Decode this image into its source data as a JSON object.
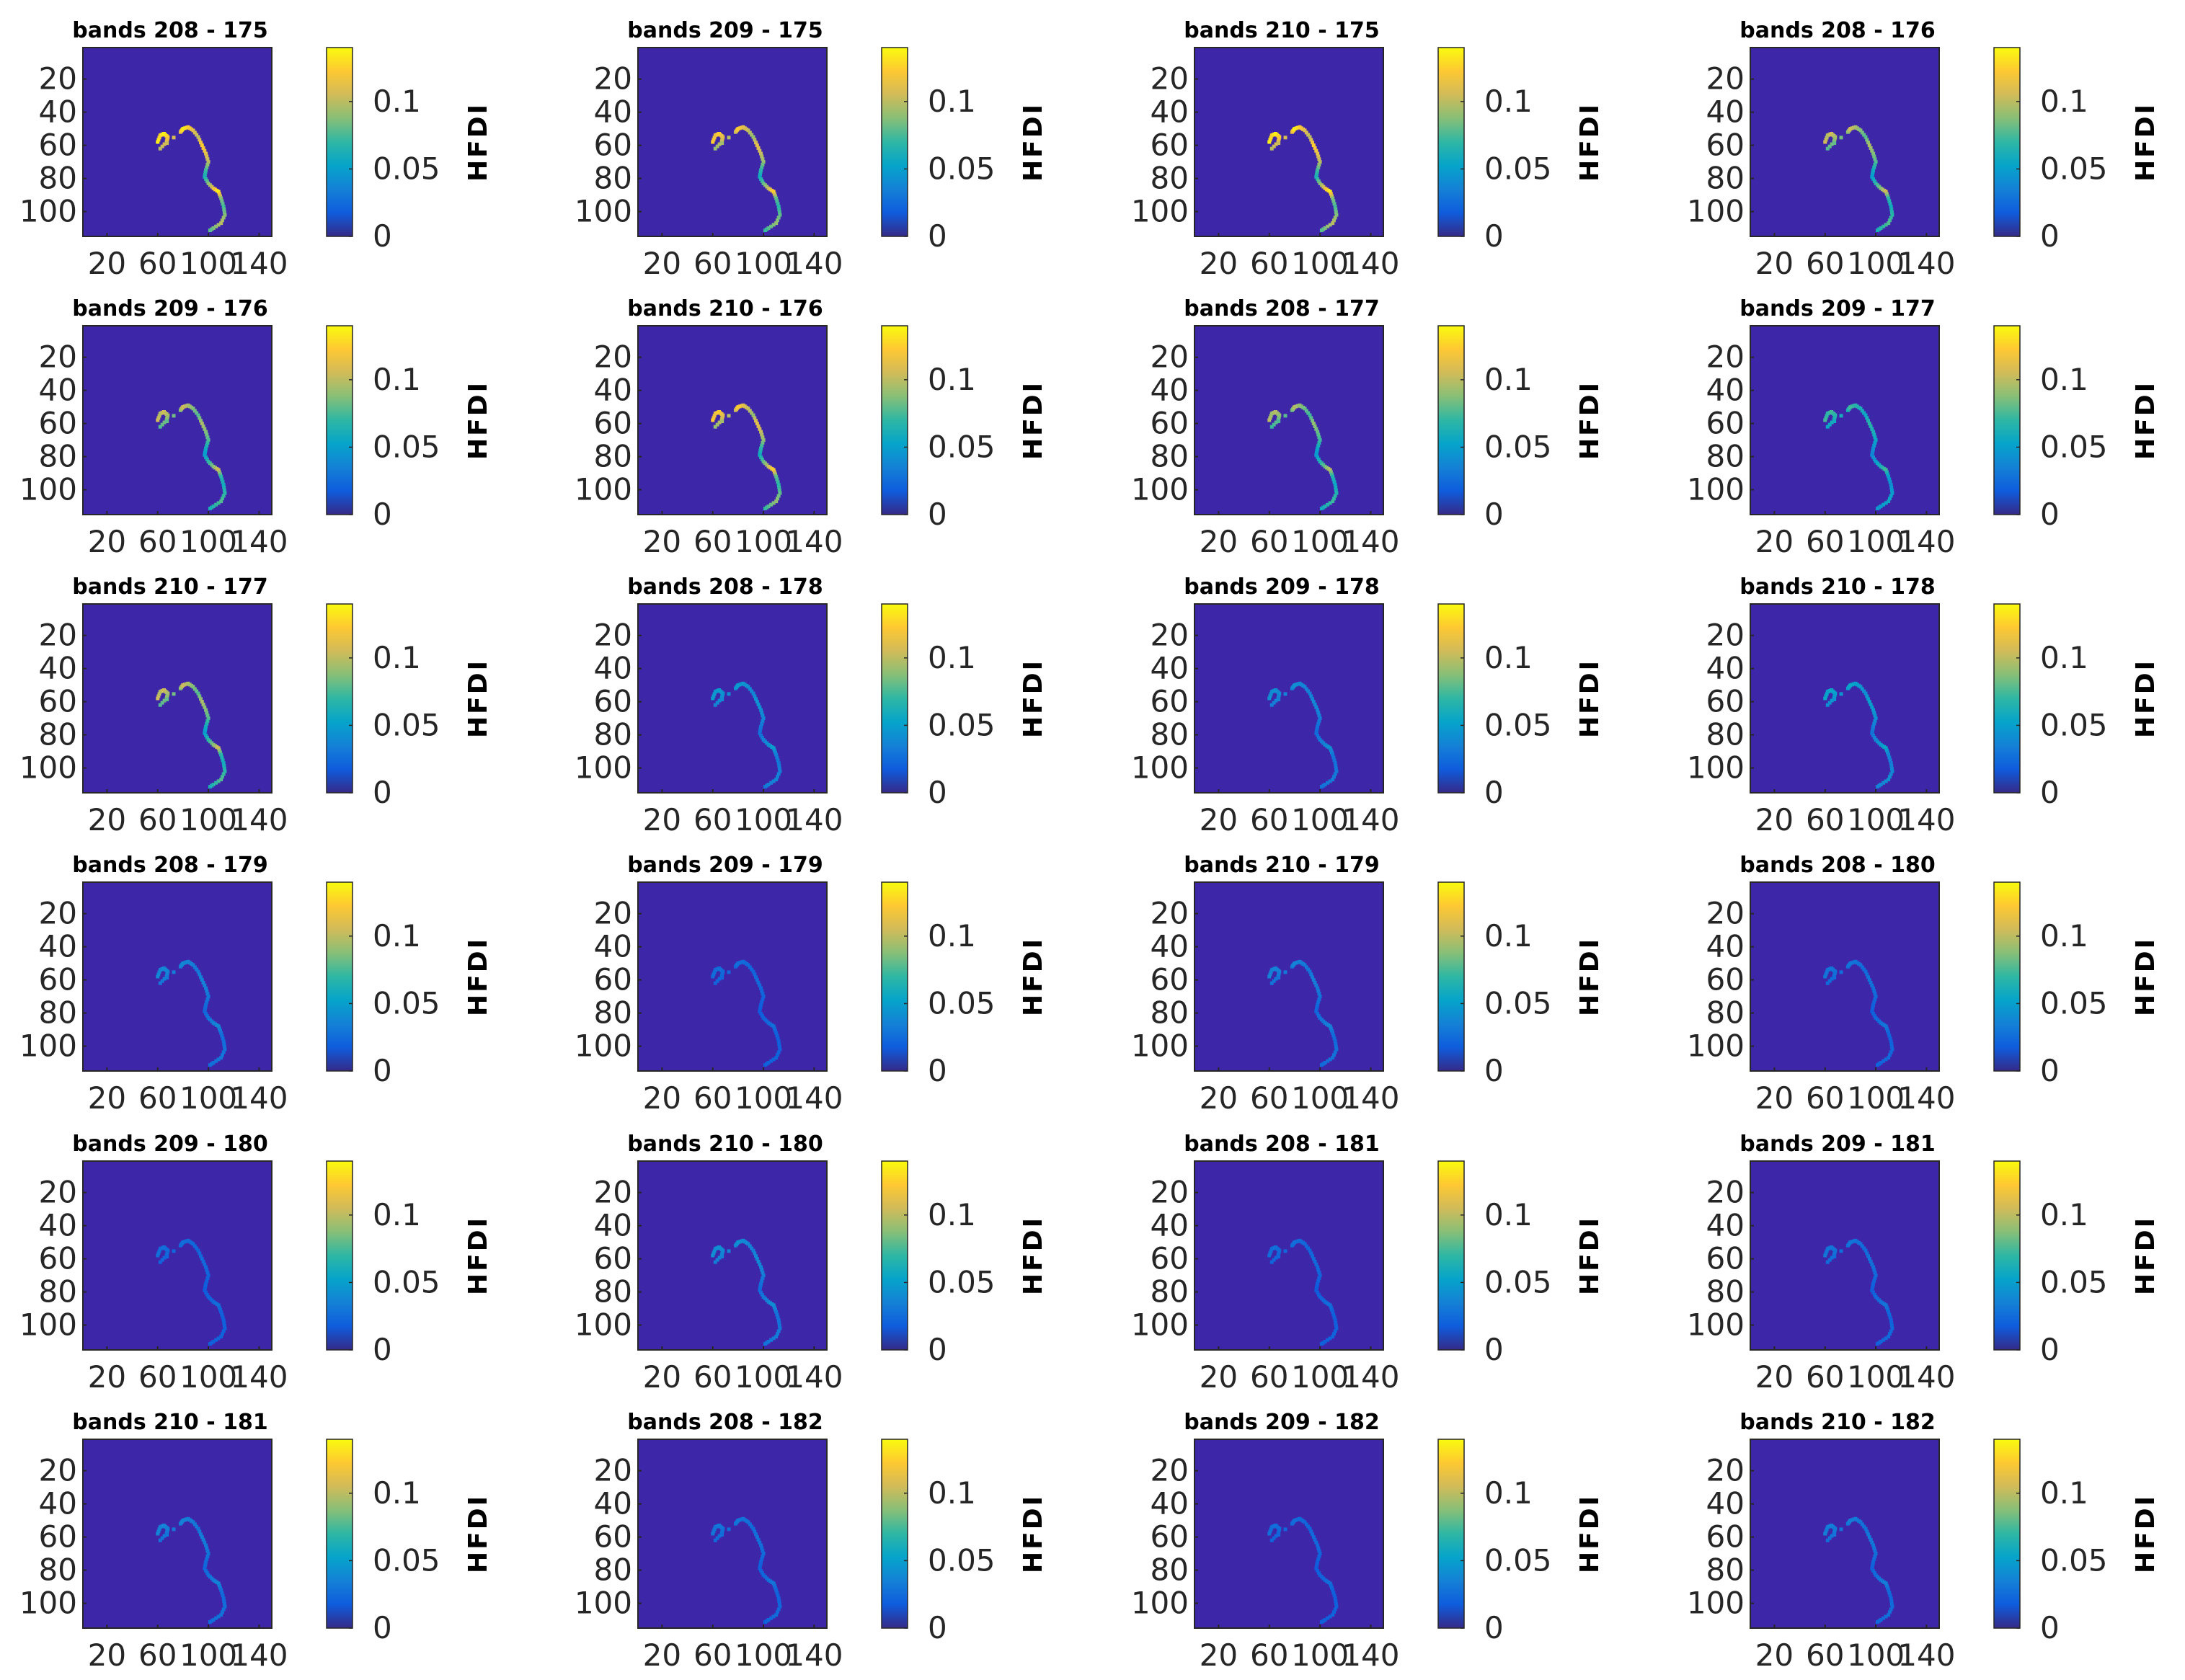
{
  "chart_data": {
    "type": "heatmap",
    "figure_title": "",
    "layout": {
      "rows": 6,
      "cols": 4
    },
    "xlim": [
      1,
      150
    ],
    "ylim": [
      1,
      115
    ],
    "xticks": [
      20,
      60,
      100,
      140
    ],
    "xtick_labels": [
      "20",
      "60",
      "100",
      "140"
    ],
    "yticks": [
      20,
      40,
      60,
      80,
      100
    ],
    "ytick_labels": [
      "20",
      "40",
      "60",
      "80",
      "100"
    ],
    "colorbar": {
      "label": "HFDI",
      "range": [
        0,
        0.14
      ],
      "ticks": [
        0,
        0.05,
        0.1
      ],
      "tick_labels": [
        "0",
        "0.05",
        "0.1"
      ],
      "colormap": "parula",
      "stops": [
        "#352a87",
        "#0f5cdd",
        "#1481d6",
        "#06a4ca",
        "#2eb7a4",
        "#87bf77",
        "#d1bb59",
        "#fec832",
        "#f9fb0e"
      ]
    },
    "background_color": "#3e26a8",
    "coastline_path": [
      {
        "x": 60,
        "y": 58,
        "v": 1.0
      },
      {
        "x": 62,
        "y": 54,
        "v": 0.9
      },
      {
        "x": 65,
        "y": 53,
        "v": 1.0
      },
      {
        "x": 68,
        "y": 55,
        "v": 0.9
      },
      {
        "x": 67,
        "y": 58,
        "v": 0.8
      },
      {
        "x": 62,
        "y": 62,
        "v": 0.7
      },
      {
        "x": 78,
        "y": 52,
        "v": 0.8
      },
      {
        "x": 80,
        "y": 50,
        "v": 1.0
      },
      {
        "x": 84,
        "y": 49,
        "v": 0.9
      },
      {
        "x": 88,
        "y": 51,
        "v": 0.8
      },
      {
        "x": 92,
        "y": 55,
        "v": 0.7
      },
      {
        "x": 95,
        "y": 60,
        "v": 0.9
      },
      {
        "x": 98,
        "y": 65,
        "v": 0.8
      },
      {
        "x": 100,
        "y": 70,
        "v": 0.7
      },
      {
        "x": 98,
        "y": 75,
        "v": 0.5
      },
      {
        "x": 97,
        "y": 79,
        "v": 0.4
      },
      {
        "x": 100,
        "y": 83,
        "v": 0.6
      },
      {
        "x": 104,
        "y": 86,
        "v": 0.8
      },
      {
        "x": 108,
        "y": 88,
        "v": 1.0
      },
      {
        "x": 110,
        "y": 92,
        "v": 0.6
      },
      {
        "x": 112,
        "y": 97,
        "v": 0.5
      },
      {
        "x": 113,
        "y": 102,
        "v": 0.6
      },
      {
        "x": 110,
        "y": 107,
        "v": 0.7
      },
      {
        "x": 104,
        "y": 110,
        "v": 0.6
      },
      {
        "x": 100,
        "y": 112,
        "v": 0.5
      }
    ],
    "panels": [
      {
        "title": "bands 208 - 175",
        "intensity": 1.0
      },
      {
        "title": "bands 209 - 175",
        "intensity": 0.9
      },
      {
        "title": "bands 210 - 175",
        "intensity": 1.0
      },
      {
        "title": "bands 208 - 176",
        "intensity": 0.75
      },
      {
        "title": "bands 209 - 176",
        "intensity": 0.75
      },
      {
        "title": "bands 210 - 176",
        "intensity": 0.9
      },
      {
        "title": "bands 208 - 177",
        "intensity": 0.7
      },
      {
        "title": "bands 209 - 177",
        "intensity": 0.5
      },
      {
        "title": "bands 210 - 177",
        "intensity": 0.75
      },
      {
        "title": "bands 208 - 178",
        "intensity": 0.3
      },
      {
        "title": "bands 209 - 178",
        "intensity": 0.25
      },
      {
        "title": "bands 210 - 178",
        "intensity": 0.35
      },
      {
        "title": "bands 208 - 179",
        "intensity": 0.22
      },
      {
        "title": "bands 209 - 179",
        "intensity": 0.12
      },
      {
        "title": "bands 210 - 179",
        "intensity": 0.2
      },
      {
        "title": "bands 208 - 180",
        "intensity": 0.15
      },
      {
        "title": "bands 209 - 180",
        "intensity": 0.12
      },
      {
        "title": "bands 210 - 180",
        "intensity": 0.25
      },
      {
        "title": "bands 208 - 181",
        "intensity": 0.12
      },
      {
        "title": "bands 209 - 181",
        "intensity": 0.15
      },
      {
        "title": "bands 210 - 181",
        "intensity": 0.2
      },
      {
        "title": "bands 208 - 182",
        "intensity": 0.15
      },
      {
        "title": "bands 209 - 182",
        "intensity": 0.12
      },
      {
        "title": "bands 210 - 182",
        "intensity": 0.18
      }
    ]
  }
}
